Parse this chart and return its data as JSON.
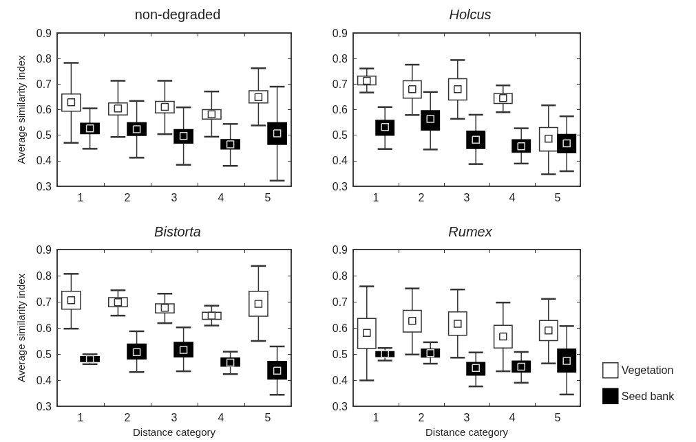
{
  "chart_data": [
    {
      "type": "box",
      "title": "non-degraded",
      "ylabel": "Average similarity index",
      "categories": [
        "1",
        "2",
        "3",
        "4",
        "5"
      ],
      "ylim": [
        0.3,
        0.9
      ],
      "yticks": [
        0.3,
        0.4,
        0.5,
        0.6,
        0.7,
        0.8,
        0.9
      ],
      "grid": false,
      "series": [
        {
          "color": "#ffffff",
          "boxes": [
            {
              "low": 0.47,
              "q1": 0.594,
              "median": 0.629,
              "q3": 0.661,
              "high": 0.783
            },
            {
              "low": 0.493,
              "q1": 0.579,
              "median": 0.605,
              "q3": 0.626,
              "high": 0.713
            },
            {
              "low": 0.504,
              "q1": 0.587,
              "median": 0.611,
              "q3": 0.632,
              "high": 0.713
            },
            {
              "low": 0.494,
              "q1": 0.563,
              "median": 0.582,
              "q3": 0.6,
              "high": 0.671
            },
            {
              "low": 0.538,
              "q1": 0.626,
              "median": 0.649,
              "q3": 0.674,
              "high": 0.762
            }
          ]
        },
        {
          "color": "#000000",
          "boxes": [
            {
              "low": 0.447,
              "q1": 0.506,
              "median": 0.527,
              "q3": 0.547,
              "high": 0.605
            },
            {
              "low": 0.412,
              "q1": 0.499,
              "median": 0.523,
              "q3": 0.549,
              "high": 0.634
            },
            {
              "low": 0.384,
              "q1": 0.469,
              "median": 0.497,
              "q3": 0.522,
              "high": 0.609
            },
            {
              "low": 0.38,
              "q1": 0.446,
              "median": 0.464,
              "q3": 0.483,
              "high": 0.544
            },
            {
              "low": 0.322,
              "q1": 0.464,
              "median": 0.507,
              "q3": 0.549,
              "high": 0.69
            }
          ]
        }
      ]
    },
    {
      "type": "box",
      "title": "Holcus",
      "categories": [
        "1",
        "2",
        "3",
        "4",
        "5"
      ],
      "ylim": [
        0.3,
        0.9
      ],
      "yticks": [
        0.3,
        0.4,
        0.5,
        0.6,
        0.7,
        0.8,
        0.9
      ],
      "grid": false,
      "series": [
        {
          "color": "#ffffff",
          "boxes": [
            {
              "low": 0.667,
              "q1": 0.697,
              "median": 0.713,
              "q3": 0.731,
              "high": 0.761
            },
            {
              "low": 0.579,
              "q1": 0.645,
              "median": 0.68,
              "q3": 0.713,
              "high": 0.776
            },
            {
              "low": 0.564,
              "q1": 0.638,
              "median": 0.68,
              "q3": 0.721,
              "high": 0.794
            },
            {
              "low": 0.59,
              "q1": 0.624,
              "median": 0.645,
              "q3": 0.663,
              "high": 0.695
            },
            {
              "low": 0.347,
              "q1": 0.438,
              "median": 0.486,
              "q3": 0.53,
              "high": 0.617
            }
          ]
        },
        {
          "color": "#000000",
          "boxes": [
            {
              "low": 0.446,
              "q1": 0.5,
              "median": 0.532,
              "q3": 0.558,
              "high": 0.61
            },
            {
              "low": 0.444,
              "q1": 0.52,
              "median": 0.564,
              "q3": 0.596,
              "high": 0.669
            },
            {
              "low": 0.387,
              "q1": 0.448,
              "median": 0.482,
              "q3": 0.516,
              "high": 0.58
            },
            {
              "low": 0.389,
              "q1": 0.433,
              "median": 0.457,
              "q3": 0.482,
              "high": 0.527
            },
            {
              "low": 0.359,
              "q1": 0.431,
              "median": 0.468,
              "q3": 0.503,
              "high": 0.574
            }
          ]
        }
      ]
    },
    {
      "type": "box",
      "title": "Bistorta",
      "ylabel": "Average similarity index",
      "xlabel": "Distance category",
      "categories": [
        "1",
        "2",
        "3",
        "4",
        "5"
      ],
      "ylim": [
        0.3,
        0.9
      ],
      "yticks": [
        0.3,
        0.4,
        0.5,
        0.6,
        0.7,
        0.8,
        0.9
      ],
      "grid": false,
      "series": [
        {
          "color": "#ffffff",
          "boxes": [
            {
              "low": 0.597,
              "q1": 0.672,
              "median": 0.706,
              "q3": 0.74,
              "high": 0.807
            },
            {
              "low": 0.647,
              "q1": 0.681,
              "median": 0.698,
              "q3": 0.716,
              "high": 0.744
            },
            {
              "low": 0.618,
              "q1": 0.657,
              "median": 0.677,
              "q3": 0.692,
              "high": 0.731
            },
            {
              "low": 0.609,
              "q1": 0.633,
              "median": 0.647,
              "q3": 0.66,
              "high": 0.685
            },
            {
              "low": 0.55,
              "q1": 0.645,
              "median": 0.692,
              "q3": 0.74,
              "high": 0.837
            }
          ]
        },
        {
          "color": "#000000",
          "boxes": [
            {
              "low": 0.461,
              "q1": 0.471,
              "median": 0.48,
              "q3": 0.49,
              "high": 0.499
            },
            {
              "low": 0.431,
              "q1": 0.481,
              "median": 0.507,
              "q3": 0.538,
              "high": 0.587
            },
            {
              "low": 0.434,
              "q1": 0.489,
              "median": 0.516,
              "q3": 0.545,
              "high": 0.602
            },
            {
              "low": 0.423,
              "q1": 0.453,
              "median": 0.467,
              "q3": 0.485,
              "high": 0.509
            },
            {
              "low": 0.344,
              "q1": 0.404,
              "median": 0.436,
              "q3": 0.472,
              "high": 0.529
            }
          ]
        }
      ]
    },
    {
      "type": "box",
      "title": "Rumex",
      "xlabel": "Distance category",
      "categories": [
        "1",
        "2",
        "3",
        "4",
        "5"
      ],
      "ylim": [
        0.3,
        0.9
      ],
      "yticks": [
        0.3,
        0.4,
        0.5,
        0.6,
        0.7,
        0.8,
        0.9
      ],
      "grid": false,
      "legend": "right",
      "series": [
        {
          "name": "Vegetation",
          "color": "#ffffff",
          "boxes": [
            {
              "low": 0.399,
              "q1": 0.521,
              "median": 0.581,
              "q3": 0.636,
              "high": 0.759
            },
            {
              "low": 0.498,
              "q1": 0.584,
              "median": 0.627,
              "q3": 0.667,
              "high": 0.751
            },
            {
              "low": 0.486,
              "q1": 0.572,
              "median": 0.616,
              "q3": 0.661,
              "high": 0.747
            },
            {
              "low": 0.434,
              "q1": 0.523,
              "median": 0.567,
              "q3": 0.61,
              "high": 0.697
            },
            {
              "low": 0.464,
              "q1": 0.551,
              "median": 0.59,
              "q3": 0.628,
              "high": 0.711
            }
          ]
        },
        {
          "name": "Seed bank",
          "color": "#000000",
          "boxes": [
            {
              "low": 0.475,
              "q1": 0.49,
              "median": 0.5,
              "q3": 0.509,
              "high": 0.523
            },
            {
              "low": 0.463,
              "q1": 0.488,
              "median": 0.503,
              "q3": 0.519,
              "high": 0.545
            },
            {
              "low": 0.376,
              "q1": 0.419,
              "median": 0.447,
              "q3": 0.468,
              "high": 0.506
            },
            {
              "low": 0.39,
              "q1": 0.431,
              "median": 0.451,
              "q3": 0.473,
              "high": 0.508
            },
            {
              "low": 0.345,
              "q1": 0.431,
              "median": 0.474,
              "q3": 0.519,
              "high": 0.607
            }
          ]
        }
      ]
    }
  ]
}
